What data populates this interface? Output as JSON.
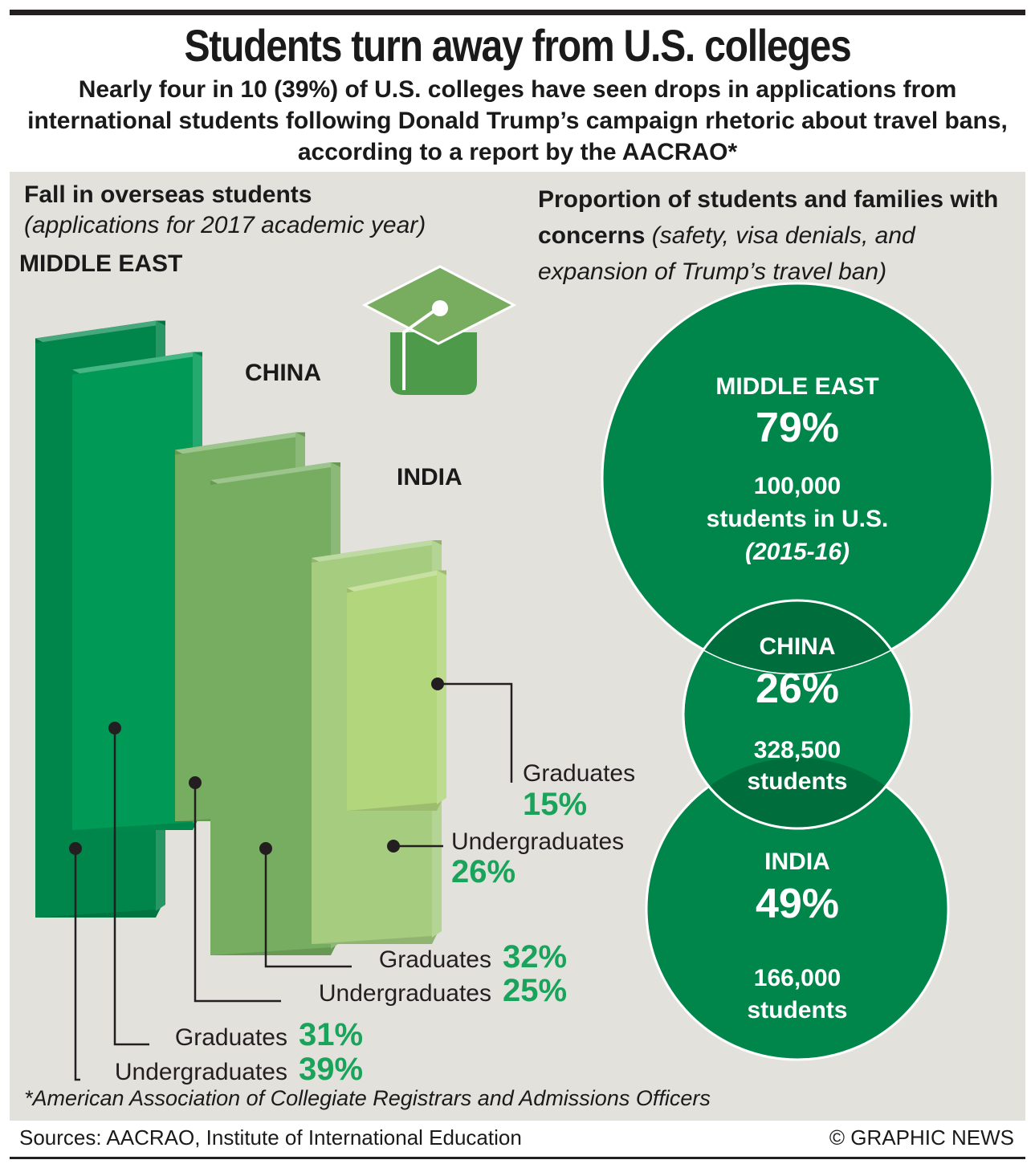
{
  "title": "Students turn away from U.S. colleges",
  "subtitle": "Nearly four in 10 (39%) of U.S. colleges have seen drops in applications from international students following Donald Trump’s campaign rhetoric about travel bans, according to a report by the AACRAO*",
  "left_panel": {
    "heading": "Fall in overseas students",
    "subheading": "(applications for 2017 academic year)"
  },
  "right_panel": {
    "heading_bold": "Proportion of students and families with concerns",
    "heading_italic": "(safety, visa denials, and expansion of Trump’s travel ban)"
  },
  "footnote": "*American Association of Collegiate Registrars and Admissions Officers",
  "sources": "Sources: AACRAO, Institute of International Education",
  "credit": "© GRAPHIC NEWS",
  "icon": "graduation-cap-icon",
  "colors": {
    "middle_east_back": "#00854a",
    "middle_east_front": "#009a56",
    "china": "#76ad60",
    "india_back": "#a5cc7f",
    "india_front": "#b2d67c",
    "label_percent": "#1aa35a",
    "circle": "#00854a",
    "panel": "#e2e1dc"
  },
  "chart_data": [
    {
      "type": "bar",
      "title": "Fall in overseas students",
      "subtitle": "(applications for 2017 academic year)",
      "categories": [
        "MIDDLE EAST",
        "CHINA",
        "INDIA"
      ],
      "series": [
        {
          "name": "Undergraduates",
          "values": [
            39,
            25,
            26
          ]
        },
        {
          "name": "Graduates",
          "values": [
            31,
            32,
            15
          ]
        }
      ],
      "value_labels": {
        "Undergraduates": [
          "39%",
          "25%",
          "26%"
        ],
        "Graduates": [
          "31%",
          "32%",
          "15%"
        ]
      }
    },
    {
      "type": "bubble",
      "title": "Proportion of students and families with concerns",
      "items": [
        {
          "region": "MIDDLE EAST",
          "value": 79,
          "label": "79%",
          "students_line1": "100,000",
          "students_line2": "students in U.S.",
          "note": "(2015-16)"
        },
        {
          "region": "CHINA",
          "value": 26,
          "label": "26%",
          "students_line1": "328,500",
          "students_line2": "students"
        },
        {
          "region": "INDIA",
          "value": 49,
          "label": "49%",
          "students_line1": "166,000",
          "students_line2": "students"
        }
      ]
    }
  ]
}
